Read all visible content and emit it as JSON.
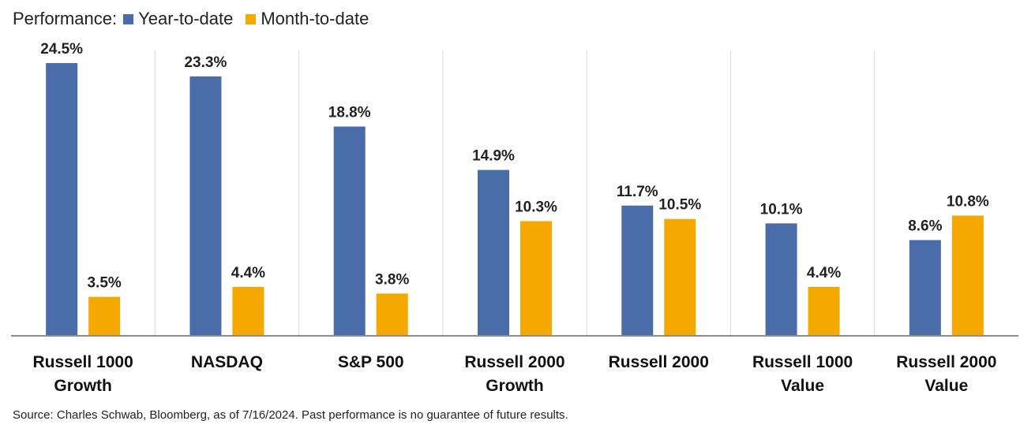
{
  "legend": {
    "prefix": "Performance:",
    "entries": [
      {
        "label": "Year-to-date",
        "color": "#4A6DAA"
      },
      {
        "label": "Month-to-date",
        "color": "#F5A800"
      }
    ]
  },
  "chart_data": {
    "type": "bar",
    "categories": [
      [
        "Russell 1000",
        "Growth"
      ],
      [
        "NASDAQ"
      ],
      [
        "S&P 500"
      ],
      [
        "Russell 2000",
        "Growth"
      ],
      [
        "Russell 2000"
      ],
      [
        "Russell 1000",
        "Value"
      ],
      [
        "Russell 2000",
        "Value"
      ]
    ],
    "series": [
      {
        "name": "Year-to-date",
        "color": "#4A6DAA",
        "values": [
          24.5,
          23.3,
          18.8,
          14.9,
          11.7,
          10.1,
          8.6
        ]
      },
      {
        "name": "Month-to-date",
        "color": "#F5A800",
        "values": [
          3.5,
          4.4,
          3.8,
          10.3,
          10.5,
          4.4,
          10.8
        ]
      }
    ],
    "value_suffix": "%",
    "ylim": [
      0,
      26
    ],
    "grid": "vertical separators",
    "legend_position": "top-left"
  },
  "footer": {
    "source": "Source: Charles Schwab, Bloomberg, as of 7/16/2024.  Past performance is no guarantee of future results."
  }
}
